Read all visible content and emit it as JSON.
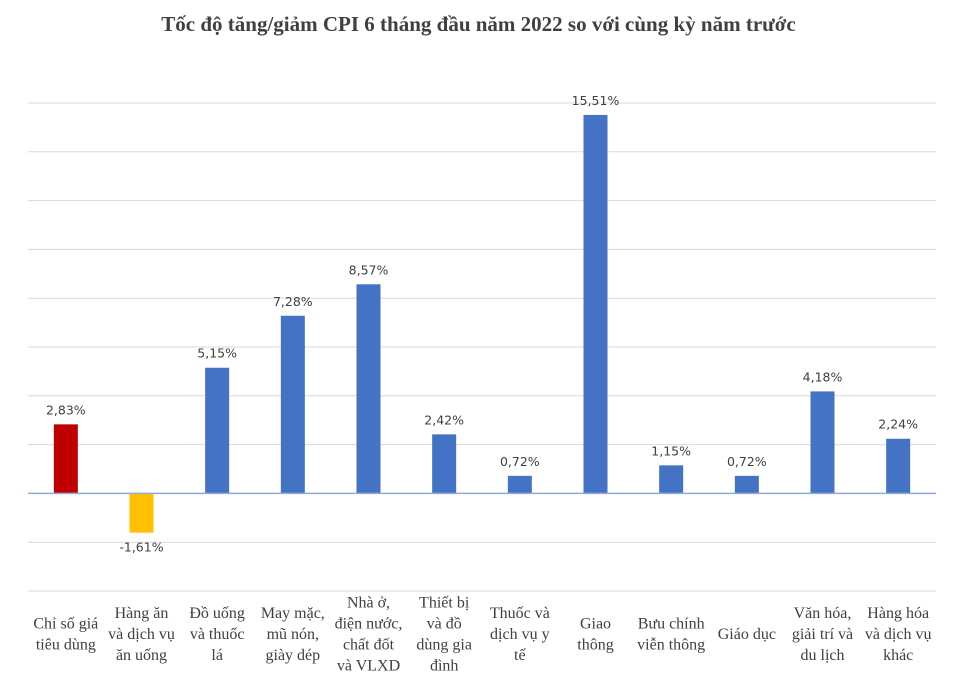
{
  "chart_data": {
    "type": "bar",
    "title": "Tốc độ tăng/giảm CPI 6 tháng đầu năm 2022 so với cùng kỳ năm trước",
    "xlabel": "",
    "ylabel": "",
    "ylim": [
      -4,
      16
    ],
    "grid": true,
    "grid_step": 2,
    "legend": "none",
    "categories": [
      [
        "Chỉ số giá",
        "tiêu dùng"
      ],
      [
        "Hàng ăn",
        "và dịch vụ",
        "ăn uống"
      ],
      [
        "Đồ uống",
        "và thuốc",
        "lá"
      ],
      [
        "May mặc,",
        "mũ nón,",
        "giày dép"
      ],
      [
        "Nhà ở,",
        "điện nước,",
        "chất đốt",
        "và VLXD"
      ],
      [
        "Thiết bị",
        "và đồ",
        "dùng gia",
        "đình"
      ],
      [
        "Thuốc và",
        "dịch vụ y",
        "tế"
      ],
      [
        "Giao",
        "thông"
      ],
      [
        "Bưu chính",
        "viễn thông"
      ],
      [
        "Giáo dục"
      ],
      [
        "Văn hóa,",
        "giải trí và",
        "du lịch"
      ],
      [
        "Hàng hóa",
        "và dịch vụ",
        "khác"
      ]
    ],
    "values": [
      2.83,
      -1.61,
      5.15,
      7.28,
      8.57,
      2.42,
      0.72,
      15.51,
      1.15,
      0.72,
      4.18,
      2.24
    ],
    "data_labels": [
      "2,83%",
      "-1,61%",
      "5,15%",
      "7,28%",
      "8,57%",
      "2,42%",
      "0,72%",
      "15,51%",
      "1,15%",
      "0,72%",
      "4,18%",
      "2,24%"
    ],
    "colors": [
      "#C00000",
      "#FFC000",
      "#4472C4",
      "#4472C4",
      "#4472C4",
      "#4472C4",
      "#4472C4",
      "#4472C4",
      "#4472C4",
      "#4472C4",
      "#4472C4",
      "#4472C4"
    ],
    "gridline_color": "#D9D9D9",
    "axis_color": "#8FAADC"
  }
}
